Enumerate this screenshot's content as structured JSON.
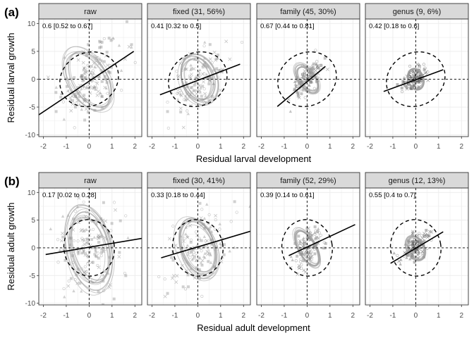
{
  "chart_data": [
    {
      "type": "scatter",
      "row_label": "(a)",
      "xlabel": "Residual larval development",
      "ylabel": "Residual larval growth",
      "xlim": [
        -2.2,
        2.3
      ],
      "ylim": [
        -10.3,
        10.8
      ],
      "x_ticks": [
        -2,
        -1,
        0,
        1,
        2
      ],
      "y_ticks": [
        -10,
        -5,
        0,
        5,
        10
      ],
      "grid": true,
      "panels": [
        {
          "title": "raw",
          "annotation": "0.6 [0.52 to 0.67]",
          "ellipse": {
            "cx": 0,
            "cy": 0,
            "rx": 2.4,
            "ry": 8.6,
            "angle": 38
          },
          "slope_line": [
            [
              -2.2,
              -6.4
            ],
            [
              1.95,
              5.0
            ]
          ],
          "cloud": {
            "cx": 0,
            "cy": 0,
            "sx": 0.7,
            "sy": 3.5,
            "rho": 0.6,
            "n": 170,
            "colour": "#888888"
          }
        },
        {
          "title": "fixed (31, 56%)",
          "annotation": "0.41 [0.32 to 0.5]",
          "ellipse": {
            "cx": 0,
            "cy": 0,
            "rx": 2.4,
            "ry": 8.6,
            "angle": 38
          },
          "slope_line": [
            [
              -1.65,
              -2.8
            ],
            [
              1.85,
              2.7
            ]
          ],
          "cloud": {
            "cx": 0,
            "cy": 0,
            "sx": 0.6,
            "sy": 2.5,
            "rho": 0.41,
            "n": 140,
            "colour": "#8a8a8a"
          }
        },
        {
          "title": "family (45, 30%)",
          "annotation": "0.67 [0.44 to 0.81]",
          "ellipse": {
            "cx": 0,
            "cy": 0,
            "rx": 2.4,
            "ry": 8.6,
            "angle": 38
          },
          "slope_line": [
            [
              -1.3,
              -4.9
            ],
            [
              0.8,
              2.3
            ]
          ],
          "cloud": {
            "cx": 0,
            "cy": 0,
            "sx": 0.32,
            "sy": 1.7,
            "rho": 0.67,
            "n": 120,
            "colour": "#6e6e6e"
          }
        },
        {
          "title": "genus (9, 6%)",
          "annotation": "0.42 [0.18 to 0.6]",
          "ellipse": {
            "cx": 0,
            "cy": 0,
            "rx": 2.4,
            "ry": 8.6,
            "angle": 38
          },
          "slope_line": [
            [
              -1.4,
              -2.2
            ],
            [
              1.2,
              1.7
            ]
          ],
          "cloud": {
            "cx": 0,
            "cy": 0,
            "sx": 0.28,
            "sy": 1.1,
            "rho": 0.42,
            "n": 110,
            "colour": "#4d4d4d"
          }
        }
      ]
    },
    {
      "type": "scatter",
      "row_label": "(b)",
      "xlabel": "Residual adult development",
      "ylabel": "Residual adult growth",
      "xlim": [
        -2.2,
        2.3
      ],
      "ylim": [
        -10.3,
        10.8
      ],
      "x_ticks": [
        -2,
        -1,
        0,
        1,
        2
      ],
      "y_ticks": [
        -10,
        -5,
        0,
        5,
        10
      ],
      "grid": true,
      "panels": [
        {
          "title": "raw",
          "annotation": "0.17 [0.02 to 0.28]",
          "ellipse": {
            "cx": 0,
            "cy": 0,
            "rx": 2.0,
            "ry": 9.3,
            "angle": 12
          },
          "slope_line": [
            [
              -1.9,
              -1.2
            ],
            [
              2.3,
              1.7
            ]
          ],
          "cloud": {
            "cx": 0,
            "cy": 0,
            "sx": 0.75,
            "sy": 4.2,
            "rho": 0.17,
            "n": 170,
            "colour": "#8a8a8a"
          }
        },
        {
          "title": "fixed (30, 41%)",
          "annotation": "0.33 [0.18 to 0.44]",
          "ellipse": {
            "cx": 0,
            "cy": 0,
            "rx": 2.0,
            "ry": 9.3,
            "angle": 12
          },
          "slope_line": [
            [
              -1.6,
              -1.8
            ],
            [
              2.3,
              3.0
            ]
          ],
          "cloud": {
            "cx": 0,
            "cy": 0,
            "sx": 0.65,
            "sy": 3.2,
            "rho": 0.33,
            "n": 140,
            "colour": "#8a8a8a"
          }
        },
        {
          "title": "family (52, 29%)",
          "annotation": "0.39 [0.14 to 0.61]",
          "ellipse": {
            "cx": 0,
            "cy": 0,
            "rx": 2.0,
            "ry": 9.3,
            "angle": 12
          },
          "slope_line": [
            [
              -0.8,
              -1.4
            ],
            [
              2.1,
              4.2
            ]
          ],
          "cloud": {
            "cx": 0,
            "cy": 0,
            "sx": 0.3,
            "sy": 2.0,
            "rho": 0.39,
            "n": 110,
            "colour": "#6e6e6e"
          }
        },
        {
          "title": "genus (12, 13%)",
          "annotation": "0.55 [0.4 to 0.7]",
          "ellipse": {
            "cx": 0,
            "cy": 0,
            "rx": 2.0,
            "ry": 9.3,
            "angle": 12
          },
          "slope_line": [
            [
              -1.1,
              -2.8
            ],
            [
              1.2,
              2.9
            ]
          ],
          "cloud": {
            "cx": 0,
            "cy": 0,
            "sx": 0.3,
            "sy": 1.3,
            "rho": 0.55,
            "n": 110,
            "colour": "#4d4d4d"
          }
        }
      ]
    }
  ]
}
